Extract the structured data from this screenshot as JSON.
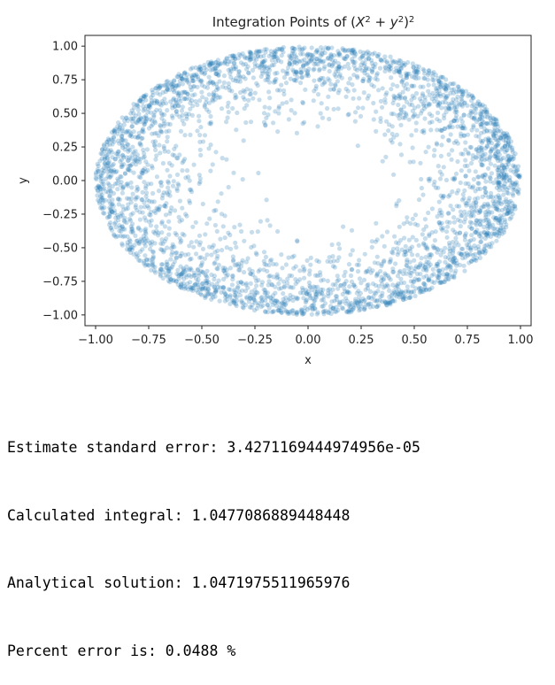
{
  "chart_data": {
    "type": "scatter",
    "title": "Integration Points of (X² + y²)²",
    "xlabel": "x",
    "ylabel": "y",
    "xlim": [
      -1.05,
      1.05
    ],
    "ylim": [
      -1.08,
      1.08
    ],
    "xticks": [
      -1.0,
      -0.75,
      -0.5,
      -0.25,
      0.0,
      0.25,
      0.5,
      0.75,
      1.0
    ],
    "xtick_labels": [
      "−1.00",
      "−0.75",
      "−0.50",
      "−0.25",
      "0.00",
      "0.25",
      "0.50",
      "0.75",
      "1.00"
    ],
    "yticks": [
      1.0,
      0.75,
      0.5,
      0.25,
      0.0,
      -0.25,
      -0.5,
      -0.75,
      -1.0
    ],
    "ytick_labels": [
      "1.00",
      "0.75",
      "0.50",
      "0.25",
      "0.00",
      "−0.25",
      "−0.50",
      "−0.75",
      "−1.00"
    ],
    "point_color": "#1f77b4",
    "point_alpha": 0.25,
    "grid": false,
    "legend": "none",
    "description_region": "points distributed inside the unit disk with density increasing toward the rim (weighted by (x²+y²)²)",
    "n_points": 3500,
    "radius_max": 1.0
  },
  "output": {
    "lines": [
      "Estimate standard error: 3.4271169444974956e-05",
      "Calculated integral: 1.0477086889448448",
      "Analytical solution: 1.0471975511965976",
      "Percent error is: 0.0488 %"
    ]
  }
}
